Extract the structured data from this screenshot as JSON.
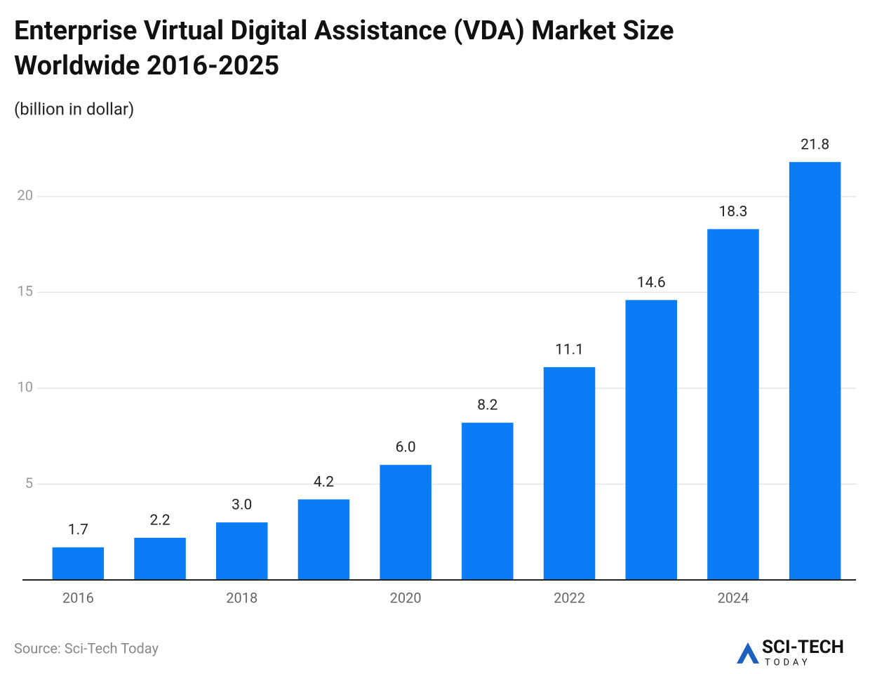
{
  "chart_data": {
    "type": "bar",
    "title": "Enterprise Virtual Digital Assistance (VDA) Market Size Worldwide 2016-2025",
    "subtitle": "(billion in dollar)",
    "source": "Source: Sci-Tech Today",
    "logo": {
      "name": "SCI-TECH",
      "tagline": "TODAY"
    },
    "categories": [
      "2016",
      null,
      "2018",
      null,
      "2020",
      null,
      "2022",
      null,
      "2024",
      null
    ],
    "values": [
      1.7,
      2.2,
      3.0,
      4.2,
      6.0,
      8.2,
      11.1,
      14.6,
      18.3,
      21.8
    ],
    "value_labels": [
      "1.7",
      "2.2",
      "3.0",
      "4.2",
      "6.0",
      "8.2",
      "11.1",
      "14.6",
      "18.3",
      "21.8"
    ],
    "color": "#0a7cf5",
    "ylim": [
      0,
      23
    ],
    "yticks": [
      5,
      10,
      15,
      20
    ],
    "grid": true
  }
}
